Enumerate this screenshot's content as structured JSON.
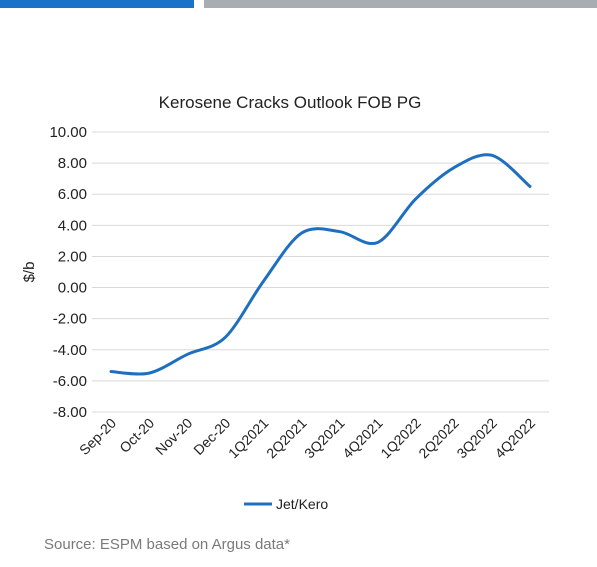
{
  "header": {
    "accent_color": "#1a73c9",
    "secondary_color": "#a8adb3"
  },
  "chart_data": {
    "type": "line",
    "title": "Kerosene Cracks Outlook FOB PG",
    "xlabel": "",
    "ylabel": "$/b",
    "categories": [
      "Sep-20",
      "Oct-20",
      "Nov-20",
      "Dec-20",
      "1Q2021",
      "2Q2021",
      "3Q2021",
      "4Q2021",
      "1Q2022",
      "2Q2022",
      "3Q2022",
      "4Q2022"
    ],
    "series": [
      {
        "name": "Jet/Kero",
        "color": "#1f6fc0",
        "values": [
          -5.4,
          -5.5,
          -4.3,
          -3.2,
          0.4,
          3.5,
          3.6,
          2.9,
          5.7,
          7.7,
          8.5,
          6.5
        ]
      }
    ],
    "ylim": [
      -8,
      10
    ],
    "yticks": [
      "-8.00",
      "-6.00",
      "-4.00",
      "-2.00",
      "0.00",
      "2.00",
      "4.00",
      "6.00",
      "8.00",
      "10.00"
    ],
    "grid": true,
    "legend_position": "bottom"
  },
  "source_note": "Source: ESPM based on Argus data*"
}
